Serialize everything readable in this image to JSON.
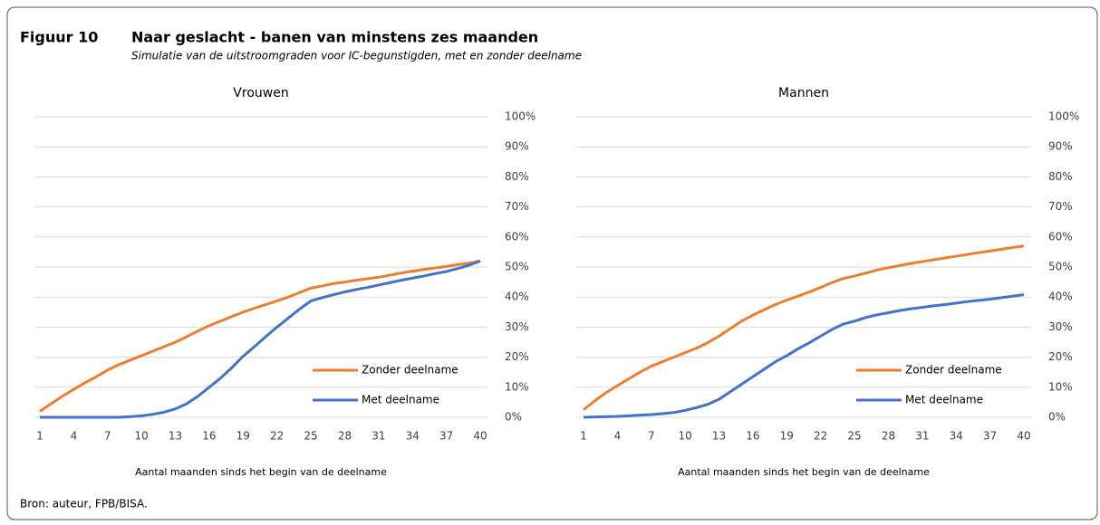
{
  "figure": {
    "label": "Figuur 10",
    "title": "Naar geslacht - banen van minstens zes maanden",
    "subtitle": "Simulatie van de uitstroomgraden voor IC-begunstigden, met en zonder deelname"
  },
  "source": "Bron: auteur, FPB/BISA.",
  "chart_data": [
    {
      "type": "line",
      "title": "Vrouwen",
      "xlabel": "Aantal maanden sinds het begin van de deelname",
      "x": [
        1,
        2,
        3,
        4,
        5,
        6,
        7,
        8,
        9,
        10,
        11,
        12,
        13,
        14,
        15,
        16,
        17,
        18,
        19,
        20,
        21,
        22,
        23,
        24,
        25,
        26,
        27,
        28,
        29,
        30,
        31,
        32,
        33,
        34,
        35,
        36,
        37,
        38,
        39,
        40
      ],
      "xlim": [
        1,
        40
      ],
      "xticks": [
        1,
        4,
        7,
        10,
        13,
        16,
        19,
        22,
        25,
        28,
        31,
        34,
        37,
        40
      ],
      "ylim": [
        0,
        100
      ],
      "yticks": [
        {
          "value": 0,
          "label": "0%"
        },
        {
          "value": 10,
          "label": "10%"
        },
        {
          "value": 20,
          "label": "20%"
        },
        {
          "value": 30,
          "label": "30%"
        },
        {
          "value": 40,
          "label": "40%"
        },
        {
          "value": 50,
          "label": "50%"
        },
        {
          "value": 60,
          "label": "60%"
        },
        {
          "value": 70,
          "label": "70%"
        },
        {
          "value": 80,
          "label": "80%"
        },
        {
          "value": 90,
          "label": "90%"
        },
        {
          "value": 100,
          "label": "100%"
        }
      ],
      "grid": true,
      "legend": "lower right",
      "series": [
        {
          "name": "Zonder deelname",
          "color": "#ed7d31",
          "values": [
            2,
            4.5,
            7,
            9.3,
            11.5,
            13.5,
            15.7,
            17.5,
            19,
            20.5,
            22,
            23.5,
            25,
            26.8,
            28.7,
            30.5,
            32,
            33.5,
            35,
            36.3,
            37.5,
            38.7,
            40,
            41.5,
            43,
            43.7,
            44.5,
            45,
            45.6,
            46.1,
            46.6,
            47.3,
            48,
            48.6,
            49.2,
            49.7,
            50.2,
            50.8,
            51.3,
            52
          ]
        },
        {
          "name": "Met deelname",
          "color": "#4472c4",
          "values": [
            0,
            0,
            0,
            0,
            0,
            0,
            0,
            0,
            0.2,
            0.5,
            1,
            1.7,
            2.8,
            4.5,
            7,
            10,
            13,
            16.5,
            20.3,
            23.5,
            26.8,
            30,
            33,
            36,
            38.7,
            39.8,
            40.8,
            41.7,
            42.5,
            43.2,
            44,
            44.8,
            45.6,
            46.3,
            47,
            47.8,
            48.5,
            49.5,
            50.6,
            52
          ]
        }
      ]
    },
    {
      "type": "line",
      "title": "Mannen",
      "xlabel": "Aantal maanden sinds het begin van de deelname",
      "x": [
        1,
        2,
        3,
        4,
        5,
        6,
        7,
        8,
        9,
        10,
        11,
        12,
        13,
        14,
        15,
        16,
        17,
        18,
        19,
        20,
        21,
        22,
        23,
        24,
        25,
        26,
        27,
        28,
        29,
        30,
        31,
        32,
        33,
        34,
        35,
        36,
        37,
        38,
        39,
        40
      ],
      "xlim": [
        1,
        40
      ],
      "xticks": [
        1,
        4,
        7,
        10,
        13,
        16,
        19,
        22,
        25,
        28,
        31,
        34,
        37,
        40
      ],
      "ylim": [
        0,
        100
      ],
      "yticks": [
        {
          "value": 0,
          "label": "0%"
        },
        {
          "value": 10,
          "label": "10%"
        },
        {
          "value": 20,
          "label": "20%"
        },
        {
          "value": 30,
          "label": "30%"
        },
        {
          "value": 40,
          "label": "40%"
        },
        {
          "value": 50,
          "label": "50%"
        },
        {
          "value": 60,
          "label": "60%"
        },
        {
          "value": 70,
          "label": "70%"
        },
        {
          "value": 80,
          "label": "80%"
        },
        {
          "value": 90,
          "label": "90%"
        },
        {
          "value": 100,
          "label": "100%"
        }
      ],
      "grid": true,
      "legend": "lower right",
      "series": [
        {
          "name": "Zonder deelname",
          "color": "#ed7d31",
          "values": [
            2.5,
            5.5,
            8.2,
            10.5,
            12.8,
            15,
            17,
            18.5,
            20,
            21.5,
            23,
            24.8,
            27,
            29.5,
            32,
            34,
            35.8,
            37.5,
            39,
            40.3,
            41.7,
            43.2,
            44.8,
            46.2,
            47,
            48,
            49,
            49.8,
            50.5,
            51.2,
            51.8,
            52.4,
            53,
            53.6,
            54.2,
            54.8,
            55.3,
            55.9,
            56.5,
            57
          ]
        },
        {
          "name": "Met deelname",
          "color": "#4472c4",
          "values": [
            0,
            0.1,
            0.2,
            0.3,
            0.5,
            0.7,
            0.9,
            1.2,
            1.6,
            2.3,
            3.2,
            4.3,
            6,
            8.5,
            11,
            13.5,
            16,
            18.5,
            20.5,
            22.8,
            24.8,
            27,
            29.2,
            31,
            32,
            33.2,
            34.1,
            34.8,
            35.5,
            36.1,
            36.6,
            37.1,
            37.5,
            38,
            38.5,
            38.9,
            39.3,
            39.8,
            40.3,
            40.8
          ]
        }
      ]
    }
  ]
}
